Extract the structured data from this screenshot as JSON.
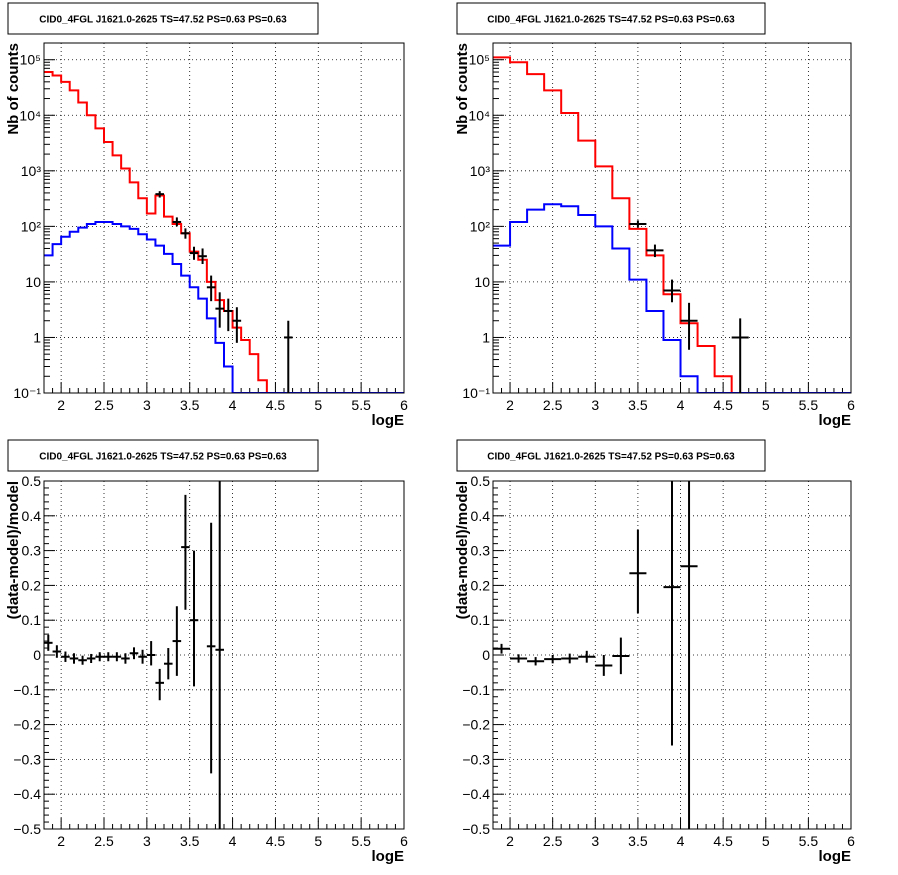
{
  "chart_data": [
    {
      "type": "step",
      "title": "CID0_4FGL J1621.0-2625 TS=47.52 PS=0.63 PS=0.63",
      "xlabel": "logE",
      "ylabel": "Nb of counts",
      "xlim": [
        1.8,
        6.0
      ],
      "ylim": [
        0.1,
        200000
      ],
      "yscale": "log",
      "grid": true,
      "xticks": [
        "2",
        "2.5",
        "3",
        "3.5",
        "4",
        "4.5",
        "5",
        "5.5",
        "6"
      ],
      "yticks": [
        "10⁻¹",
        "1",
        "10",
        "10²",
        "10³",
        "10⁴",
        "10⁵"
      ],
      "bin_edges": [
        1.8,
        1.9,
        2.0,
        2.1,
        2.2,
        2.3,
        2.4,
        2.5,
        2.6,
        2.7,
        2.8,
        2.9,
        3.0,
        3.1,
        3.2,
        3.3,
        3.4,
        3.5,
        3.6,
        3.7,
        3.8,
        3.9,
        4.0,
        4.1,
        4.2,
        4.3,
        4.4,
        4.5,
        4.6,
        4.7,
        4.8,
        4.9,
        5.0,
        5.1,
        5.2,
        5.3,
        5.4,
        5.5,
        5.6,
        5.7,
        5.8,
        5.9,
        6.0
      ],
      "series": [
        {
          "color": "#ff0000",
          "values": [
            60000,
            52000,
            40000,
            28000,
            17000,
            10000,
            5800,
            3300,
            1900,
            1100,
            620,
            320,
            170,
            360,
            150,
            110,
            75,
            35,
            25,
            10,
            4.7,
            3,
            1.5,
            0.9,
            0.5,
            0.17,
            0.1,
            0.1,
            0.1,
            0.1,
            0.1,
            0.1,
            0.1,
            0.1,
            0.1,
            0.1,
            0.1,
            0.1,
            0.1,
            0.1,
            0.1,
            0.1
          ]
        },
        {
          "color": "#0000ff",
          "values": [
            30,
            48,
            65,
            80,
            95,
            110,
            120,
            120,
            110,
            100,
            90,
            72,
            58,
            45,
            32,
            21,
            13,
            8,
            5,
            2.2,
            0.8,
            0.3,
            0.1,
            0.1,
            0.1,
            0.1,
            0.1,
            0.1,
            0.1,
            0.1,
            0.1,
            0.1,
            0.1,
            0.1,
            0.1,
            0.1,
            0.1,
            0.1,
            0.1,
            0.1,
            0.1,
            0.1
          ]
        }
      ],
      "points": [
        {
          "x": 3.15,
          "y": 380,
          "ylo": 330,
          "yhi": 430,
          "xerr": 0.05
        },
        {
          "x": 3.35,
          "y": 120,
          "ylo": 100,
          "yhi": 145,
          "xerr": 0.05
        },
        {
          "x": 3.45,
          "y": 75,
          "ylo": 60,
          "yhi": 92,
          "xerr": 0.05
        },
        {
          "x": 3.55,
          "y": 33,
          "ylo": 25,
          "yhi": 43,
          "xerr": 0.05
        },
        {
          "x": 3.65,
          "y": 29,
          "ylo": 21,
          "yhi": 40,
          "xerr": 0.05
        },
        {
          "x": 3.75,
          "y": 8,
          "ylo": 4.5,
          "yhi": 13,
          "xerr": 0.05
        },
        {
          "x": 3.85,
          "y": 3.3,
          "ylo": 1.5,
          "yhi": 6.5,
          "xerr": 0.05
        },
        {
          "x": 3.95,
          "y": 3,
          "ylo": 1.3,
          "yhi": 5,
          "xerr": 0.05
        },
        {
          "x": 4.05,
          "y": 2,
          "ylo": 0.8,
          "yhi": 3.5,
          "xerr": 0.05
        },
        {
          "x": 4.65,
          "y": 1,
          "ylo": 0.1,
          "yhi": 2,
          "xerr": 0.05
        }
      ]
    },
    {
      "type": "step",
      "title": "CID0_4FGL J1621.0-2625 TS=47.52 PS=0.63 PS=0.63",
      "xlabel": "logE",
      "ylabel": "Nb of counts",
      "xlim": [
        1.8,
        6.0
      ],
      "ylim": [
        0.1,
        200000
      ],
      "yscale": "log",
      "grid": true,
      "xticks": [
        "2",
        "2.5",
        "3",
        "3.5",
        "4",
        "4.5",
        "5",
        "5.5",
        "6"
      ],
      "yticks": [
        "10⁻¹",
        "1",
        "10",
        "10²",
        "10³",
        "10⁴",
        "10⁵"
      ],
      "bin_edges": [
        1.8,
        2.0,
        2.2,
        2.4,
        2.6,
        2.8,
        3.0,
        3.2,
        3.4,
        3.6,
        3.8,
        4.0,
        4.2,
        4.4,
        4.6,
        4.8,
        5.0,
        5.2,
        5.4,
        5.6,
        5.8,
        6.0
      ],
      "series": [
        {
          "color": "#ff0000",
          "values": [
            110000,
            90000,
            55000,
            28000,
            11000,
            3500,
            1200,
            320,
            90,
            30,
            6,
            1.8,
            0.7,
            0.2,
            0.1,
            0.1,
            0.1,
            0.1,
            0.1,
            0.1,
            0.1
          ]
        },
        {
          "color": "#0000ff",
          "values": [
            45,
            120,
            200,
            250,
            230,
            160,
            100,
            40,
            11,
            3,
            0.9,
            0.2,
            0.1,
            0.1,
            0.1,
            0.1,
            0.1,
            0.1,
            0.1,
            0.1,
            0.1
          ]
        }
      ],
      "points": [
        {
          "x": 3.5,
          "y": 110,
          "ylo": 95,
          "yhi": 128,
          "xerr": 0.1
        },
        {
          "x": 3.7,
          "y": 37,
          "ylo": 28,
          "yhi": 47,
          "xerr": 0.1
        },
        {
          "x": 3.9,
          "y": 7,
          "ylo": 4.3,
          "yhi": 11,
          "xerr": 0.1
        },
        {
          "x": 4.1,
          "y": 2,
          "ylo": 0.6,
          "yhi": 4.2,
          "xerr": 0.1
        },
        {
          "x": 4.7,
          "y": 1,
          "ylo": 0.1,
          "yhi": 2.2,
          "xerr": 0.1
        }
      ]
    },
    {
      "type": "scatter",
      "title": "CID0_4FGL J1621.0-2625 TS=47.52 PS=0.63 PS=0.63",
      "xlabel": "logE",
      "ylabel": "(data-model)/model",
      "xlim": [
        1.8,
        6.0
      ],
      "ylim": [
        -0.5,
        0.5
      ],
      "yscale": "linear",
      "grid": true,
      "xticks": [
        "2",
        "2.5",
        "3",
        "3.5",
        "4",
        "4.5",
        "5",
        "5.5",
        "6"
      ],
      "yticks": [
        "−0.5",
        "−0.4",
        "−0.3",
        "−0.2",
        "−0.1",
        "0",
        "0.1",
        "0.2",
        "0.3",
        "0.4",
        "0.5"
      ],
      "points": [
        {
          "x": 1.85,
          "y": 0.035,
          "ylo": 0.012,
          "yhi": 0.058,
          "xerr": 0.05
        },
        {
          "x": 1.95,
          "y": 0.01,
          "ylo": -0.008,
          "yhi": 0.028,
          "xerr": 0.05
        },
        {
          "x": 2.05,
          "y": -0.005,
          "ylo": -0.02,
          "yhi": 0.01,
          "xerr": 0.05
        },
        {
          "x": 2.15,
          "y": -0.01,
          "ylo": -0.025,
          "yhi": 0.005,
          "xerr": 0.05
        },
        {
          "x": 2.25,
          "y": -0.015,
          "ylo": -0.028,
          "yhi": -0.002,
          "xerr": 0.05
        },
        {
          "x": 2.35,
          "y": -0.01,
          "ylo": -0.023,
          "yhi": 0.003,
          "xerr": 0.05
        },
        {
          "x": 2.45,
          "y": -0.005,
          "ylo": -0.018,
          "yhi": 0.008,
          "xerr": 0.05
        },
        {
          "x": 2.55,
          "y": -0.005,
          "ylo": -0.018,
          "yhi": 0.008,
          "xerr": 0.05
        },
        {
          "x": 2.65,
          "y": -0.005,
          "ylo": -0.018,
          "yhi": 0.008,
          "xerr": 0.05
        },
        {
          "x": 2.75,
          "y": -0.01,
          "ylo": -0.025,
          "yhi": 0.005,
          "xerr": 0.05
        },
        {
          "x": 2.85,
          "y": 0.005,
          "ylo": -0.012,
          "yhi": 0.022,
          "xerr": 0.05
        },
        {
          "x": 2.95,
          "y": -0.005,
          "ylo": -0.025,
          "yhi": 0.015,
          "xerr": 0.05
        },
        {
          "x": 3.05,
          "y": 0.0,
          "ylo": -0.03,
          "yhi": 0.04,
          "xerr": 0.05
        },
        {
          "x": 3.15,
          "y": -0.08,
          "ylo": -0.13,
          "yhi": -0.04,
          "xerr": 0.05
        },
        {
          "x": 3.25,
          "y": -0.025,
          "ylo": -0.07,
          "yhi": 0.02,
          "xerr": 0.05
        },
        {
          "x": 3.35,
          "y": 0.04,
          "ylo": -0.06,
          "yhi": 0.14,
          "xerr": 0.05
        },
        {
          "x": 3.45,
          "y": 0.31,
          "ylo": 0.13,
          "yhi": 0.46,
          "xerr": 0.05
        },
        {
          "x": 3.55,
          "y": 0.1,
          "ylo": -0.09,
          "yhi": 0.3,
          "xerr": 0.05
        },
        {
          "x": 3.75,
          "y": 0.025,
          "ylo": -0.34,
          "yhi": 0.38,
          "xerr": 0.05
        },
        {
          "x": 3.85,
          "y": 0.015,
          "ylo": -0.5,
          "yhi": 0.5,
          "xerr": 0.05
        }
      ]
    },
    {
      "type": "scatter",
      "title": "CID0_4FGL J1621.0-2625 TS=47.52 PS=0.63 PS=0.63",
      "xlabel": "logE",
      "ylabel": "(data-model)/model",
      "xlim": [
        1.8,
        6.0
      ],
      "ylim": [
        -0.5,
        0.5
      ],
      "yscale": "linear",
      "grid": true,
      "xticks": [
        "2",
        "2.5",
        "3",
        "3.5",
        "4",
        "4.5",
        "5",
        "5.5",
        "6"
      ],
      "yticks": [
        "−0.5",
        "−0.4",
        "−0.3",
        "−0.2",
        "−0.1",
        "0",
        "0.1",
        "0.2",
        "0.3",
        "0.4",
        "0.5"
      ],
      "points": [
        {
          "x": 1.9,
          "y": 0.018,
          "ylo": 0.004,
          "yhi": 0.032,
          "xerr": 0.1
        },
        {
          "x": 2.1,
          "y": -0.01,
          "ylo": -0.022,
          "yhi": 0.002,
          "xerr": 0.1
        },
        {
          "x": 2.3,
          "y": -0.018,
          "ylo": -0.03,
          "yhi": -0.006,
          "xerr": 0.1
        },
        {
          "x": 2.5,
          "y": -0.012,
          "ylo": -0.024,
          "yhi": 0.0,
          "xerr": 0.1
        },
        {
          "x": 2.7,
          "y": -0.01,
          "ylo": -0.024,
          "yhi": 0.004,
          "xerr": 0.1
        },
        {
          "x": 2.9,
          "y": -0.005,
          "ylo": -0.022,
          "yhi": 0.012,
          "xerr": 0.1
        },
        {
          "x": 3.1,
          "y": -0.03,
          "ylo": -0.06,
          "yhi": 0.0,
          "xerr": 0.1
        },
        {
          "x": 3.3,
          "y": -0.003,
          "ylo": -0.055,
          "yhi": 0.05,
          "xerr": 0.1
        },
        {
          "x": 3.5,
          "y": 0.235,
          "ylo": 0.12,
          "yhi": 0.36,
          "xerr": 0.1
        },
        {
          "x": 3.9,
          "y": 0.195,
          "ylo": -0.26,
          "yhi": 0.5,
          "xerr": 0.1
        },
        {
          "x": 4.1,
          "y": 0.255,
          "ylo": -0.5,
          "yhi": 0.5,
          "xerr": 0.1
        }
      ]
    }
  ]
}
